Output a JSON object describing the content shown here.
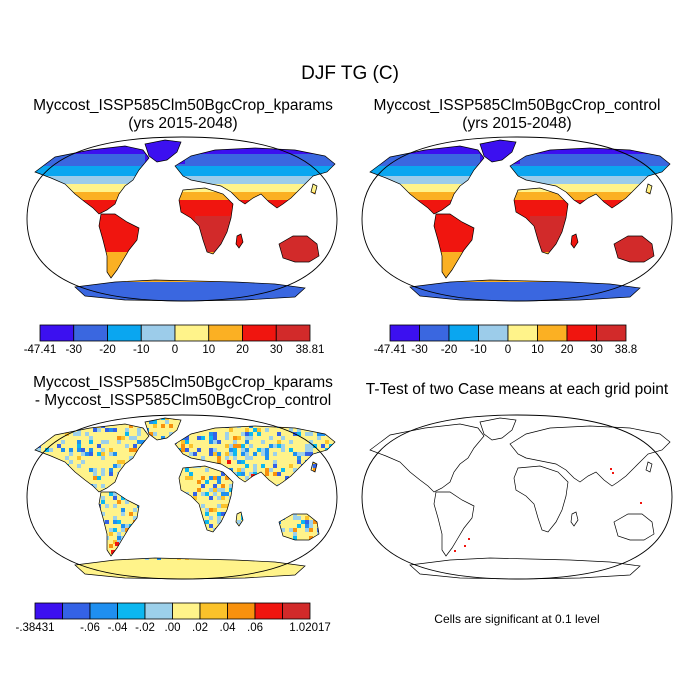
{
  "figure": {
    "title": "DJF TG (C)",
    "panels": [
      {
        "id": "kparams",
        "title_line1": "Myccost_ISSP585Clm50BgcCrop_kparams",
        "title_line2": "(yrs 2015-2048)"
      },
      {
        "id": "control",
        "title_line1": "Myccost_ISSP585Clm50BgcCrop_control",
        "title_line2": "(yrs 2015-2048)"
      },
      {
        "id": "difference",
        "title_line1": "Myccost_ISSP585Clm50BgcCrop_kparams",
        "title_line2": "- Myccost_ISSP585Clm50BgcCrop_control"
      },
      {
        "id": "ttest",
        "title_line1": "T-Test of two Case means at each grid point",
        "title_line2": ""
      }
    ],
    "ttest_note": "Cells are significant at 0.1 level"
  },
  "colorbars": [
    {
      "id": "kparams-colorbar",
      "colors": [
        "#3c10f0",
        "#3a67e0",
        "#0aa6f0",
        "#9cccea",
        "#fff38a",
        "#fbb023",
        "#f0150f",
        "#d22a2a"
      ],
      "labels": [
        "-47.41",
        "-30",
        "-20",
        "-10",
        "0",
        "10",
        "20",
        "30",
        "38.81"
      ]
    },
    {
      "id": "control-colorbar",
      "colors": [
        "#3c10f0",
        "#3a67e0",
        "#0aa6f0",
        "#9cccea",
        "#fff38a",
        "#fbb023",
        "#f0150f",
        "#d22a2a"
      ],
      "labels": [
        "-47.41",
        "-30",
        "-20",
        "-10",
        "0",
        "10",
        "20",
        "30",
        "38.8"
      ]
    },
    {
      "id": "difference-colorbar",
      "colors": [
        "#3c10f0",
        "#3462e6",
        "#1f8ff0",
        "#0cb7f0",
        "#9cd0ea",
        "#fff38a",
        "#fbc22a",
        "#f8910d",
        "#f0150f",
        "#d22a2a"
      ],
      "labels": [
        "-.38431",
        "-.06",
        "-.04",
        "-.02",
        ".00",
        ".02",
        ".04",
        ".06",
        "1.02017"
      ]
    }
  ]
}
